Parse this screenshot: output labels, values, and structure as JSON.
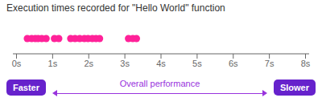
{
  "chart_data": {
    "type": "scatter",
    "title": "Execution times recorded for \"Hello World\" function",
    "x": [
      0.3,
      0.42,
      0.52,
      0.6,
      0.7,
      0.82,
      1.05,
      1.17,
      1.5,
      1.62,
      1.75,
      1.88,
      1.98,
      2.1,
      2.2,
      2.3,
      3.1,
      3.22,
      3.32
    ],
    "color": "#ff2299",
    "xlim": [
      -0.1,
      8.1
    ],
    "xticks": [
      {
        "value": 0,
        "label": "0s"
      },
      {
        "value": 1,
        "label": "1s"
      },
      {
        "value": 2,
        "label": "2s"
      },
      {
        "value": 3,
        "label": "3s"
      },
      {
        "value": 4,
        "label": "4s"
      },
      {
        "value": 5,
        "label": "5s"
      },
      {
        "value": 6,
        "label": "6s"
      },
      {
        "value": 7,
        "label": "7s"
      },
      {
        "value": 8,
        "label": "8s"
      }
    ],
    "grid": false,
    "tick_labels": "x",
    "annotations": [
      "Faster",
      "Overall performance",
      "Slower"
    ]
  }
}
